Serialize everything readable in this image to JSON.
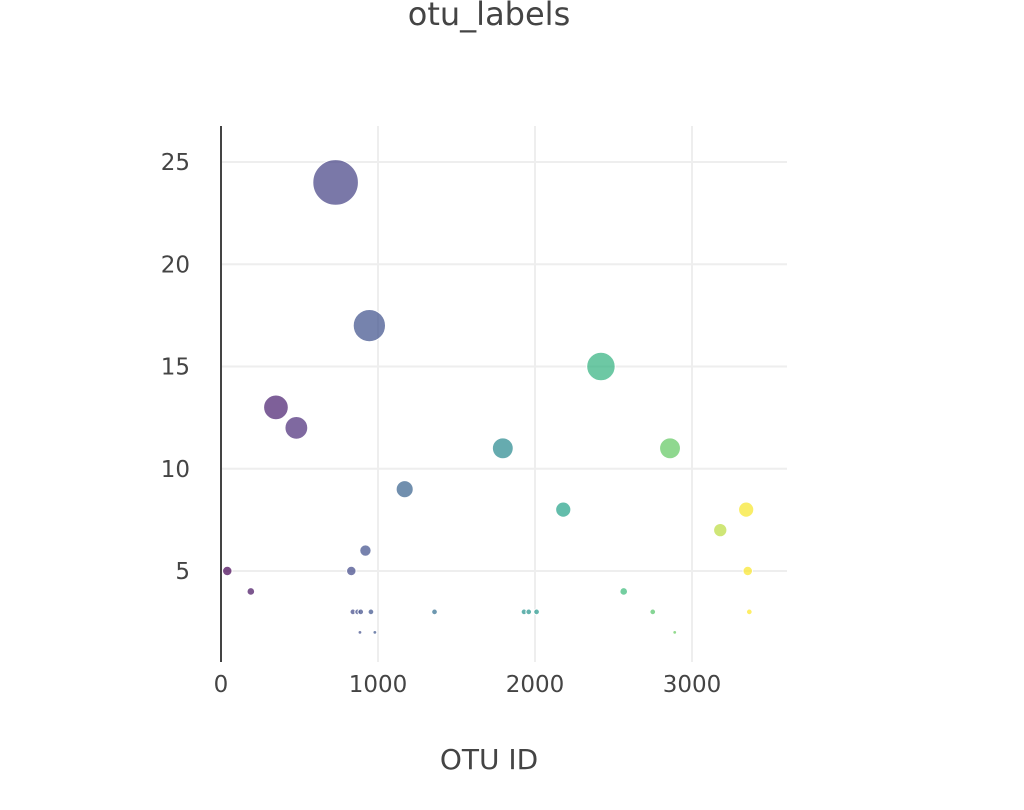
{
  "chart_data": {
    "type": "scatter",
    "mode": "bubble",
    "title": "otu_labels",
    "xlabel": "OTU ID",
    "ylabel": "",
    "xlim": [
      0,
      3600
    ],
    "ylim": [
      0.5,
      26.8
    ],
    "xticks": [
      0,
      1000,
      2000,
      3000
    ],
    "yticks": [
      5,
      10,
      15,
      20,
      25
    ],
    "grid": true,
    "colorscale": "Viridis",
    "marker_opacity": 0.7,
    "points": [
      {
        "x": 40,
        "y": 5
      },
      {
        "x": 190,
        "y": 4
      },
      {
        "x": 350,
        "y": 13
      },
      {
        "x": 480,
        "y": 12
      },
      {
        "x": 730,
        "y": 24
      },
      {
        "x": 830,
        "y": 5
      },
      {
        "x": 840,
        "y": 3
      },
      {
        "x": 870,
        "y": 3
      },
      {
        "x": 890,
        "y": 3
      },
      {
        "x": 885,
        "y": 2
      },
      {
        "x": 920,
        "y": 6
      },
      {
        "x": 945,
        "y": 17
      },
      {
        "x": 955,
        "y": 3
      },
      {
        "x": 980,
        "y": 2
      },
      {
        "x": 1170,
        "y": 9
      },
      {
        "x": 1360,
        "y": 3
      },
      {
        "x": 1795,
        "y": 11
      },
      {
        "x": 1930,
        "y": 3
      },
      {
        "x": 1960,
        "y": 3
      },
      {
        "x": 2010,
        "y": 3
      },
      {
        "x": 2180,
        "y": 8
      },
      {
        "x": 2420,
        "y": 15
      },
      {
        "x": 2565,
        "y": 4
      },
      {
        "x": 2750,
        "y": 3
      },
      {
        "x": 2860,
        "y": 11
      },
      {
        "x": 2890,
        "y": 2
      },
      {
        "x": 3180,
        "y": 7
      },
      {
        "x": 3345,
        "y": 8
      },
      {
        "x": 3355,
        "y": 5
      },
      {
        "x": 3365,
        "y": 3
      }
    ]
  }
}
